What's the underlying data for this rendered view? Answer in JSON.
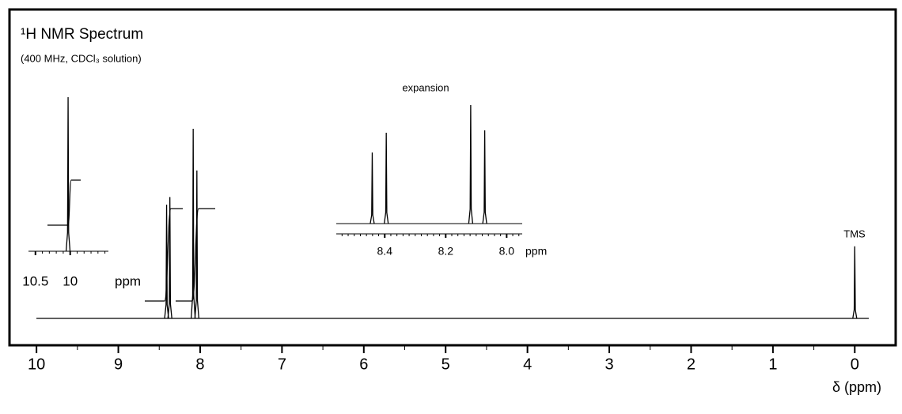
{
  "chart_data": [
    {
      "type": "spectrum",
      "title": "¹H NMR Spectrum",
      "subtitle": "(400 MHz, CDCl₃ solution)",
      "xlabel": "δ (ppm)",
      "annotation": "TMS",
      "x": [
        8.41,
        8.37,
        8.085,
        8.04,
        0
      ],
      "values": [
        60,
        64,
        100,
        78,
        38
      ],
      "xlim": [
        10.33,
        -0.5
      ],
      "ylim": [
        0,
        100
      ],
      "xticks": [
        10,
        9,
        8,
        7,
        6,
        5,
        4,
        3,
        2,
        1,
        0
      ],
      "xminorticks": [
        9.5,
        8.5,
        7.5,
        6.5,
        5.5,
        4.5,
        3.5,
        2.5,
        1.5,
        0.5
      ]
    },
    {
      "type": "spectrum",
      "xlabel": "ppm",
      "x": [
        10.03
      ],
      "values": [
        100
      ],
      "xlim": [
        10.6,
        9.45
      ],
      "ylim": [
        0,
        100
      ],
      "xticks": [
        10.5,
        10
      ],
      "xminorticks": [
        10.4,
        10.3,
        10.2,
        10.1,
        9.9,
        9.8,
        9.7,
        9.6,
        9.5
      ]
    },
    {
      "type": "spectrum",
      "title": "expansion",
      "xlabel": "ppm",
      "x": [
        8.441,
        8.395,
        8.118,
        8.072
      ],
      "values": [
        90,
        115,
        150,
        118
      ],
      "xlim": [
        8.559,
        7.949
      ],
      "ylim": [
        0,
        160
      ],
      "xticks": [
        {
          "value": 8.4,
          "label": "8.4"
        },
        {
          "value": 8.2,
          "label": "8.2"
        },
        {
          "value": 8,
          "label": "8.0"
        }
      ],
      "xminorticks": [
        8.54,
        8.52,
        8.5,
        8.48,
        8.46,
        8.44,
        8.42,
        8.38,
        8.36,
        8.34,
        8.32,
        8.3,
        8.28,
        8.26,
        8.24,
        8.22,
        8.18,
        8.16,
        8.14,
        8.12,
        8.1,
        8.08,
        8.06,
        8.04,
        8.02,
        7.98,
        7.96
      ]
    }
  ]
}
